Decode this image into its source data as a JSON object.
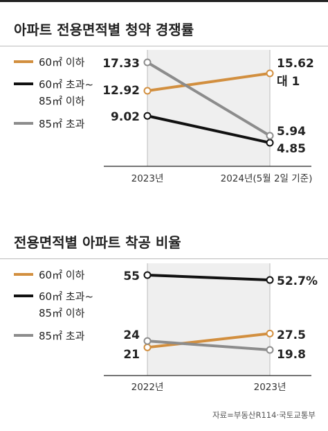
{
  "source": "자료=부동산R114·국토교통부",
  "chart_data": [
    {
      "type": "line",
      "title": "아파트 전용면적별 청약 경쟁률",
      "categories": [
        "2023년",
        "2024년(5월 2일 기준)"
      ],
      "series": [
        {
          "name": "60㎡ 이하",
          "color": "#d28f3f",
          "values": [
            12.92,
            15.62
          ],
          "labels": [
            "12.92",
            "15.62"
          ]
        },
        {
          "name": "60㎡ 초과~ 85㎡ 이하",
          "color": "#111111",
          "values": [
            9.02,
            4.85
          ],
          "labels": [
            "9.02",
            "4.85"
          ]
        },
        {
          "name": "85㎡ 초과",
          "color": "#8c8c8c",
          "values": [
            17.33,
            5.94
          ],
          "labels": [
            "17.33",
            "5.94"
          ]
        }
      ],
      "annotation": "대 1",
      "ylim": [
        4.85,
        17.33
      ]
    },
    {
      "type": "line",
      "title": "전용면적별 아파트 착공 비율",
      "categories": [
        "2022년",
        "2023년"
      ],
      "series": [
        {
          "name": "60㎡ 이하",
          "color": "#d28f3f",
          "values": [
            21,
            27.5
          ],
          "labels": [
            "21",
            "27.5"
          ]
        },
        {
          "name": "60㎡ 초과~ 85㎡ 이하",
          "color": "#111111",
          "values": [
            55,
            52.7
          ],
          "labels": [
            "55",
            "52.7%"
          ]
        },
        {
          "name": "85㎡ 초과",
          "color": "#8c8c8c",
          "values": [
            24,
            19.8
          ],
          "labels": [
            "24",
            "19.8"
          ]
        }
      ],
      "ylim": [
        19.8,
        55
      ]
    }
  ]
}
